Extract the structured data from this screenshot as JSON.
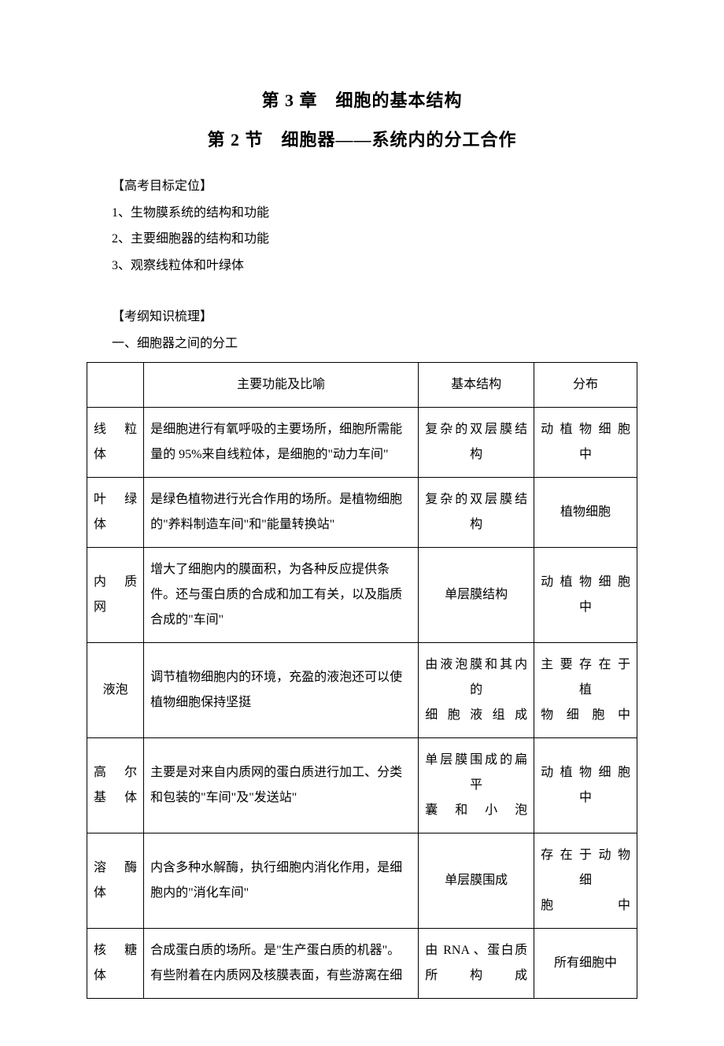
{
  "title_main": "第 3 章　细胞的基本结构",
  "title_sub": "第 2 节　细胞器——系统内的分工合作",
  "section1_heading": "【高考目标定位】",
  "section1_items": [
    "1、生物膜系统的结构和功能",
    "2、主要细胞器的结构和功能",
    "3、观察线粒体和叶绿体"
  ],
  "section2_heading": "【考纲知识梳理】",
  "section2_sub": "一、细胞器之间的分工",
  "table": {
    "headers": {
      "name": "",
      "func": "主要功能及比喻",
      "struct": "基本结构",
      "dist": "分布"
    },
    "rows": [
      {
        "name": "线粒体",
        "func": "是细胞进行有氧呼吸的主要场所，细胞所需能量的 95%来自线粒体，是细胞的\"动力车间\"",
        "struct": "复杂的双层膜结构",
        "struct_last": "构",
        "dist": "动植物细胞中",
        "dist_last": "中"
      },
      {
        "name": "叶绿体",
        "func": "是绿色植物进行光合作用的场所。是植物细胞的\"养料制造车间\"和\"能量转换站\"",
        "struct": "复杂的双层膜结构",
        "struct_last": "构",
        "dist": "植物细胞"
      },
      {
        "name": "内质网",
        "func": "增大了细胞内的膜面积，为各种反应提供条件。还与蛋白质的合成和加工有关，以及脂质合成的\"车间\"",
        "struct": "单层膜结构",
        "dist": "动植物细胞中",
        "dist_last": "中"
      },
      {
        "name": "液泡",
        "func": "调节植物细胞内的环境，充盈的液泡还可以使植物细胞保持坚挺",
        "struct": "由液泡膜和其内的",
        "struct_line2": "细胞液组成",
        "dist": "主要存在于植",
        "dist_line2": "物细胞中"
      },
      {
        "name": "高尔基体",
        "func": "主要是对来自内质网的蛋白质进行加工、分类和包装的\"车间\"及\"发送站\"",
        "struct": "单层膜围成的扁平",
        "struct_line2": "囊和小泡",
        "dist": "动植物细胞中",
        "dist_last": "中"
      },
      {
        "name": "溶酶体",
        "func": "内含多种水解酶，执行细胞内消化作用，是细胞内的\"消化车间\"",
        "struct": "单层膜围成",
        "dist": "存在于动物细",
        "dist_line2": "胞中"
      },
      {
        "name": "核糖体",
        "func": "合成蛋白质的场所。是\"生产蛋白质的机器\"。有些附着在内质网及核膜表面，有些游离在细",
        "struct": "由 RNA 、蛋白质所构成",
        "dist": "所有细胞中"
      }
    ]
  }
}
